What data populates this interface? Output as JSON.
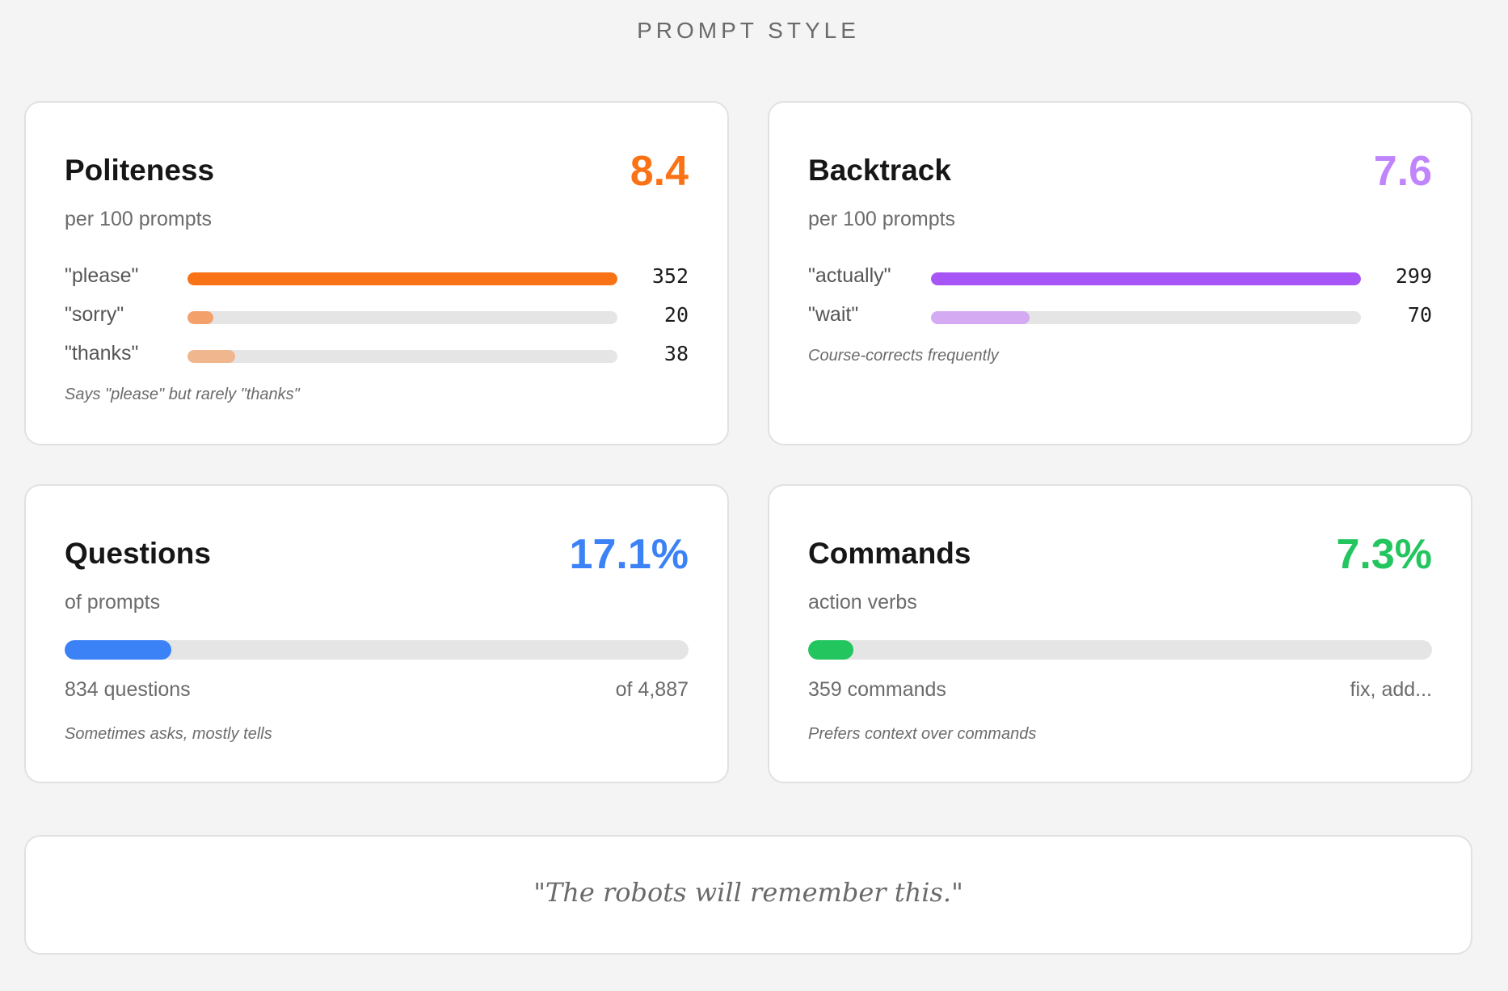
{
  "section_title": "PROMPT STYLE",
  "colors": {
    "politeness": "#f97316",
    "backtrack": "#c084fc",
    "questions": "#3b82f6",
    "commands": "#22c55e"
  },
  "politeness": {
    "title": "Politeness",
    "metric": "8.4",
    "subtitle": "per 100 prompts",
    "rows": [
      {
        "label": "\"please\"",
        "value": "352",
        "fraction": 1.0,
        "color": "#f97316"
      },
      {
        "label": "\"sorry\"",
        "value": "20",
        "fraction": 0.06,
        "color": "#f4a06b"
      },
      {
        "label": "\"thanks\"",
        "value": "38",
        "fraction": 0.11,
        "color": "#f0b68e"
      }
    ],
    "note": "Says \"please\" but rarely \"thanks\""
  },
  "backtrack": {
    "title": "Backtrack",
    "metric": "7.6",
    "subtitle": "per 100 prompts",
    "rows": [
      {
        "label": "\"actually\"",
        "value": "299",
        "fraction": 1.0,
        "color": "#a855f7"
      },
      {
        "label": "\"wait\"",
        "value": "70",
        "fraction": 0.23,
        "color": "#d4aaf2"
      }
    ],
    "note": "Course-corrects frequently"
  },
  "questions": {
    "title": "Questions",
    "metric": "17.1%",
    "subtitle": "of prompts",
    "progress": 0.171,
    "foot_left": "834 questions",
    "foot_right": "of 4,887",
    "note": "Sometimes asks, mostly tells"
  },
  "commands": {
    "title": "Commands",
    "metric": "7.3%",
    "subtitle": "action verbs",
    "progress": 0.073,
    "foot_left": "359 commands",
    "foot_right": "fix, add...",
    "note": "Prefers context over commands"
  },
  "quote": "\"The robots will remember this.\""
}
